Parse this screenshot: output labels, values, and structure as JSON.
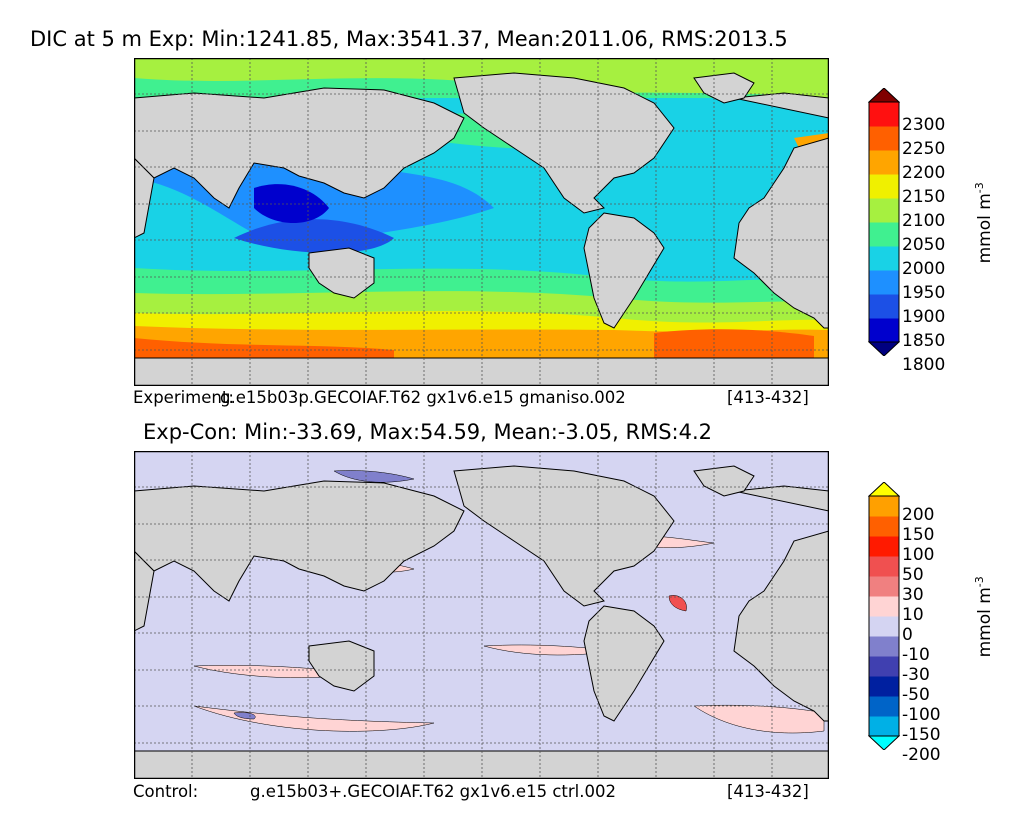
{
  "top_map": {
    "title": "DIC at 5 m Exp: Min:1241.85, Max:3541.37, Mean:2011.06, RMS:2013.5",
    "footer_label": "Experiment:",
    "footer_case": "g.e15b03p.GECOIAF.T62 gx1v6.e15 gmaniso.002",
    "footer_years": "[413-432]",
    "colorbar": {
      "unit": "mmol m",
      "unit_sup": "-3",
      "ticks": [
        "2300",
        "2250",
        "2200",
        "2150",
        "2100",
        "2050",
        "2000",
        "1950",
        "1900",
        "1850",
        "1800"
      ],
      "colors": [
        "#000080",
        "#0000cd",
        "#1c50e6",
        "#1e90ff",
        "#19d2e6",
        "#40f090",
        "#a6f040",
        "#f0f000",
        "#ffa500",
        "#ff6000",
        "#ff1010",
        "#800000"
      ]
    }
  },
  "bottom_map": {
    "title": "Exp-Con: Min:-33.69, Max:54.59, Mean:-3.05, RMS:4.2",
    "footer_label": "Control:",
    "footer_case": "g.e15b03+.GECOIAF.T62 gx1v6.e15 ctrl.002",
    "footer_years": "[413-432]",
    "colorbar": {
      "unit": "mmol m",
      "unit_sup": "-3",
      "ticks": [
        "200",
        "150",
        "100",
        "50",
        "30",
        "10",
        "0",
        "-10",
        "-30",
        "-50",
        "-100",
        "-150",
        "-200"
      ],
      "colors": [
        "#00ffff",
        "#00b0e6",
        "#0064c8",
        "#0020a0",
        "#4040b0",
        "#8080cc",
        "#d4d4f2",
        "#ffd4d4",
        "#f08080",
        "#f05050",
        "#ff1a00",
        "#ff6000",
        "#ffa000",
        "#ffff00"
      ]
    }
  },
  "colors": {
    "land": "#d3d3d3",
    "ocean_bottom": "#d5d5f2",
    "grid": "#555555"
  }
}
